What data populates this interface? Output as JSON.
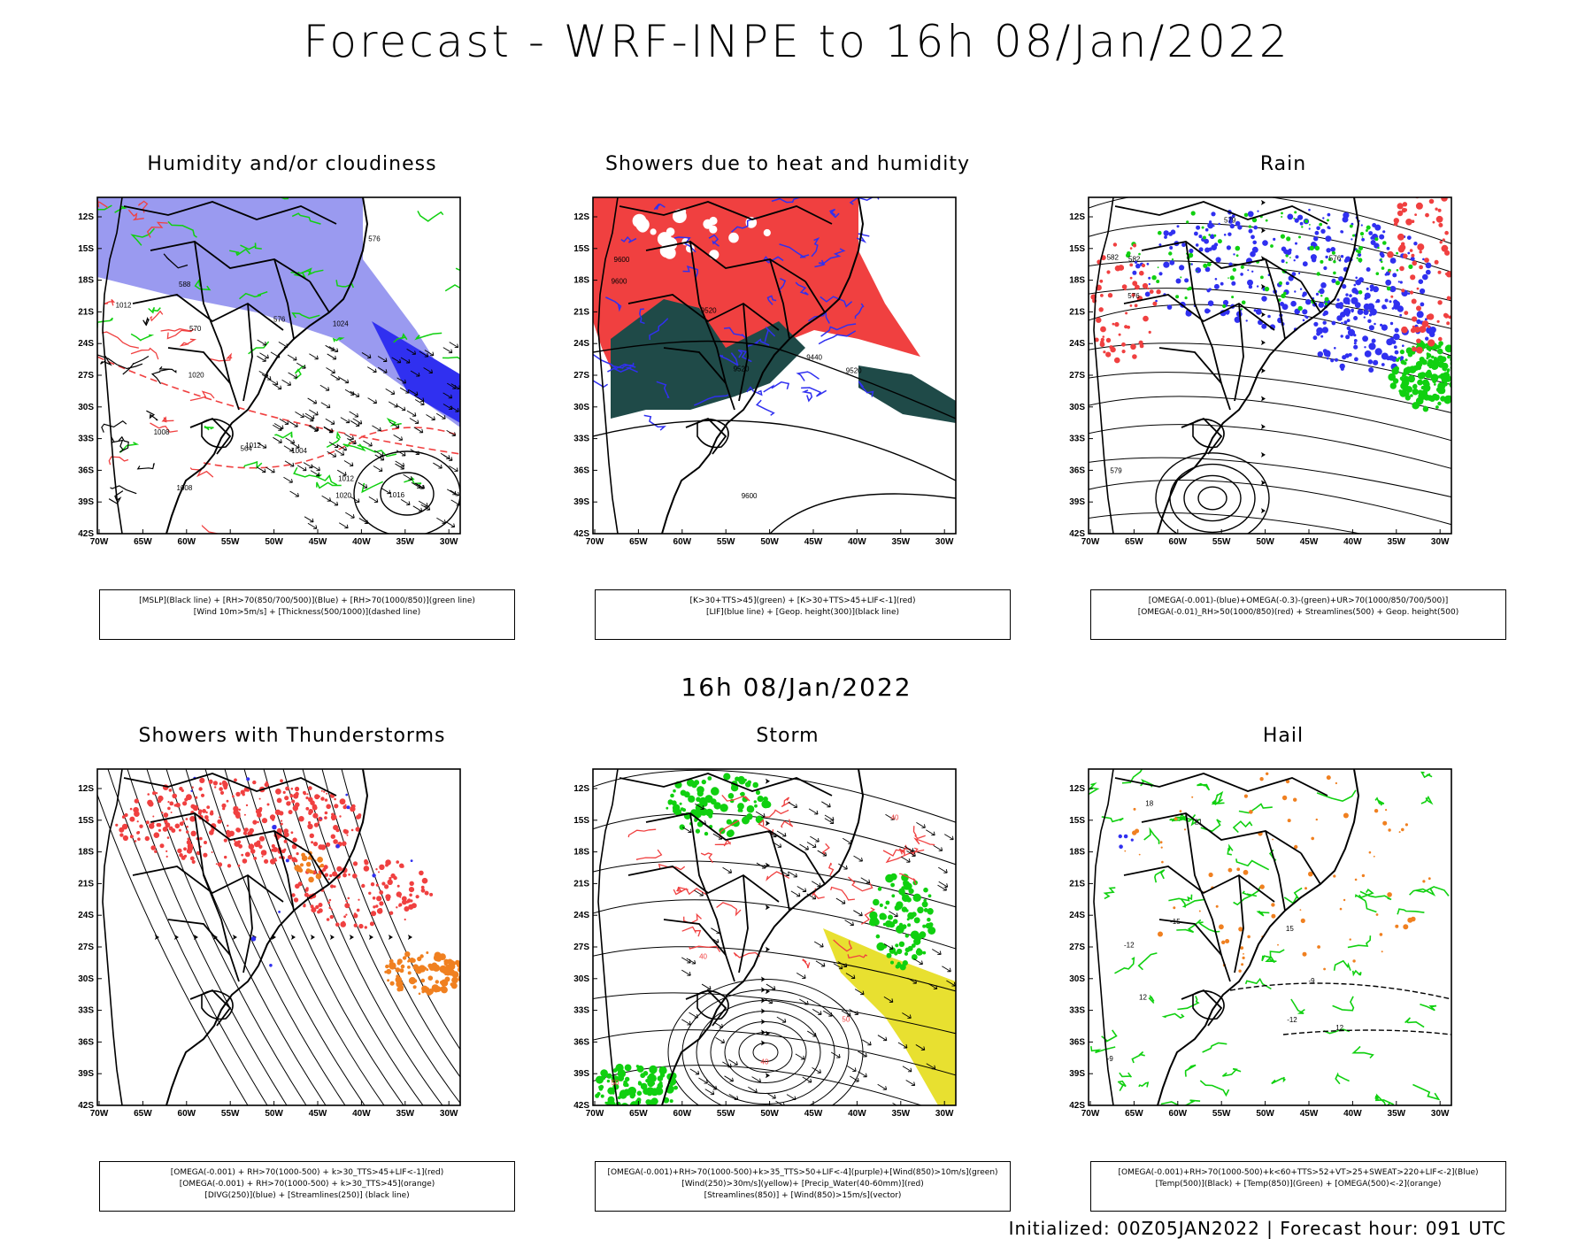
{
  "title": "Forecast - WRF-INPE to 16h 08/Jan/2022",
  "subtitle": "16h 08/Jan/2022",
  "footer": "Initialized: 00Z05JAN2022 | Forecast hour: 091 UTC",
  "lat_labels": [
    "12S",
    "15S",
    "18S",
    "21S",
    "24S",
    "27S",
    "30S",
    "33S",
    "36S",
    "39S",
    "42S"
  ],
  "lon_labels": [
    "70W",
    "65W",
    "60W",
    "55W",
    "50W",
    "45W",
    "40W",
    "35W",
    "30W"
  ],
  "panels": [
    {
      "title": "Humidity and/or cloudiness",
      "legend": [
        "[MSLP](Black line) + [RH>70(850/700/500)](Blue) + [RH>70(1000/850)](green line)",
        "[Wind 10m>5m/s] + [Thickness(500/1000)](dashed line)"
      ],
      "labels": [
        "1012",
        "1008",
        "1004",
        "1012",
        "1016",
        "1012",
        "1008",
        "1020",
        "1020",
        "1024",
        "576",
        "576",
        "570",
        "564",
        "588"
      ]
    },
    {
      "title": "Showers due to heat and humidity",
      "legend": [
        "[K>30+TTS>45](green) + [K>30+TTS>45+LIF<-1](red)",
        "[LIF](blue line) + [Geop. height(300)](black line)"
      ],
      "labels": [
        "9600",
        "9600",
        "9520",
        "9520",
        "9440",
        "9520",
        "9600"
      ]
    },
    {
      "title": "Rain",
      "legend": [
        "[OMEGA(-0.001)-(blue)+OMEGA(-0.3)-(green)+UR>70(1000/850/700/500)]",
        "[OMEGA(-0.01)_RH>50(1000/850)(red) + Streamlines(500) + Geop. height(500)"
      ],
      "labels": [
        "582",
        "576",
        "579",
        "576",
        "579",
        "582"
      ]
    },
    {
      "title": "Showers with Thunderstorms",
      "legend": [
        "[OMEGA(-0.001) + RH>70(1000-500) + k>30_TTS>45+LIF<-1](red)",
        "[OMEGA(-0.001) + RH>70(1000-500) + k>30_TTS>45](orange)",
        "[DIVG(250)](blue) + [Streamlines(250)] (black line)"
      ],
      "labels": []
    },
    {
      "title": "Storm",
      "legend": [
        "[OMEGA(-0.001)+RH>70(1000-500)+k>35_TTS>50+LIF<-4](purple)+[Wind(850)>10m/s](green)",
        "[Wind(250)>30m/s](yellow)+ [Precip_Water(40-60mm)](red)",
        "[Streamlines(850)] + [Wind(850)>15m/s](vector)"
      ],
      "labels": [
        "50",
        "40",
        "40",
        "50",
        "40"
      ]
    },
    {
      "title": "Hail",
      "legend": [
        "[OMEGA(-0.001)+RH>70(1000-500)+k<60+TTS>52+VT>25+SWEAT>220+LIF<-2](Blue)",
        "[Temp(500)](Black) + [Temp(850)](Green) + [OMEGA(500)<-2](orange)"
      ],
      "labels": [
        "-9",
        "-12",
        "-15",
        "-12",
        "-9",
        "18",
        "21",
        "15",
        "12",
        "12"
      ]
    }
  ],
  "colors": {
    "red": "#f04040",
    "green": "#10d010",
    "blue": "#3030f0",
    "lightblue": "#9a9af0",
    "darkteal": "#1f4a48",
    "orange": "#f08020",
    "yellow": "#e8e030",
    "purple": "#b030c0"
  }
}
